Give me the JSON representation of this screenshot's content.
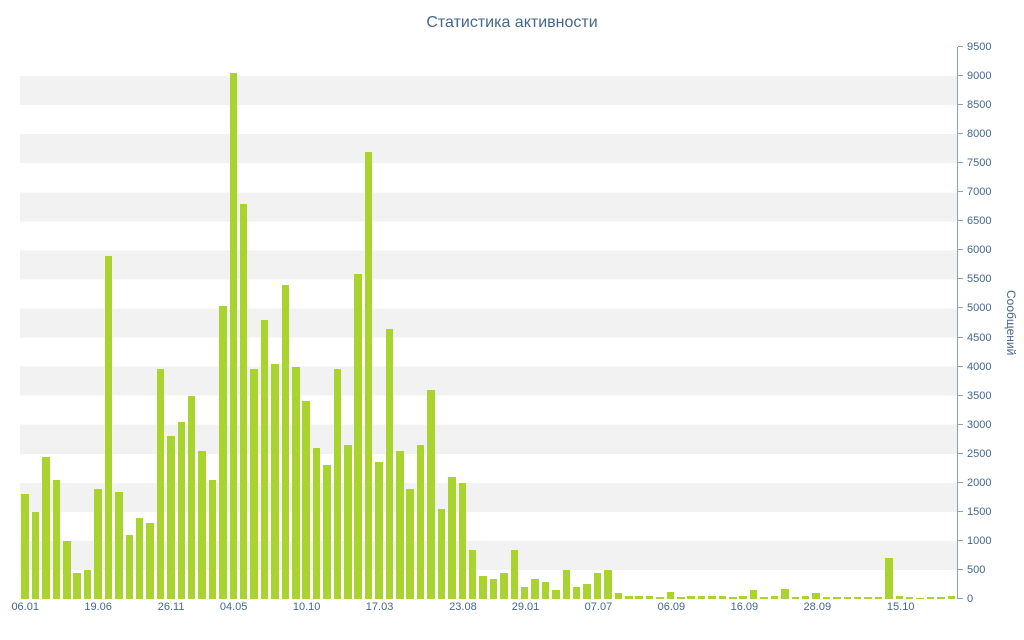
{
  "title": "Статистика активности",
  "colors": {
    "bar": "#a9d32e",
    "stripe": "#f2f2f2",
    "text": "#44678f",
    "axis": "#8aa2bd",
    "background": "#ffffff"
  },
  "chart_data": {
    "type": "bar",
    "title": "Статистика активности",
    "xlabel": "",
    "ylabel": "Сообщений",
    "ylim": [
      0,
      9500
    ],
    "y_tick_step": 500,
    "y_axis_side": "right",
    "legend": "none",
    "grid": "alternating horizontal bands every 500 units",
    "x_tick_labels": [
      {
        "label": "06.01",
        "index": 0
      },
      {
        "label": "19.06",
        "index": 7
      },
      {
        "label": "26.11",
        "index": 14
      },
      {
        "label": "04.05",
        "index": 20
      },
      {
        "label": "10.10",
        "index": 27
      },
      {
        "label": "17.03",
        "index": 34
      },
      {
        "label": "23.08",
        "index": 42
      },
      {
        "label": "29.01",
        "index": 48
      },
      {
        "label": "07.07",
        "index": 55
      },
      {
        "label": "06.09",
        "index": 62
      },
      {
        "label": "16.09",
        "index": 69
      },
      {
        "label": "28.09",
        "index": 76
      },
      {
        "label": "15.10",
        "index": 84
      }
    ],
    "values": [
      1800,
      1500,
      2450,
      2050,
      1000,
      450,
      500,
      1900,
      5900,
      1850,
      1100,
      1400,
      1300,
      3950,
      2800,
      3050,
      3500,
      2550,
      2050,
      5050,
      9050,
      6800,
      3950,
      4800,
      4050,
      5400,
      4000,
      3400,
      2600,
      2300,
      3950,
      2650,
      5600,
      7700,
      2350,
      4650,
      2550,
      1900,
      2650,
      3600,
      1550,
      2100,
      2000,
      850,
      400,
      350,
      450,
      850,
      200,
      350,
      300,
      150,
      500,
      200,
      250,
      450,
      500,
      100,
      50,
      50,
      50,
      30,
      120,
      30,
      50,
      60,
      50,
      60,
      30,
      60,
      150,
      30,
      50,
      170,
      30,
      50,
      110,
      30,
      40,
      30,
      40,
      30,
      30,
      700,
      50,
      30,
      20,
      30,
      30,
      60
    ]
  }
}
